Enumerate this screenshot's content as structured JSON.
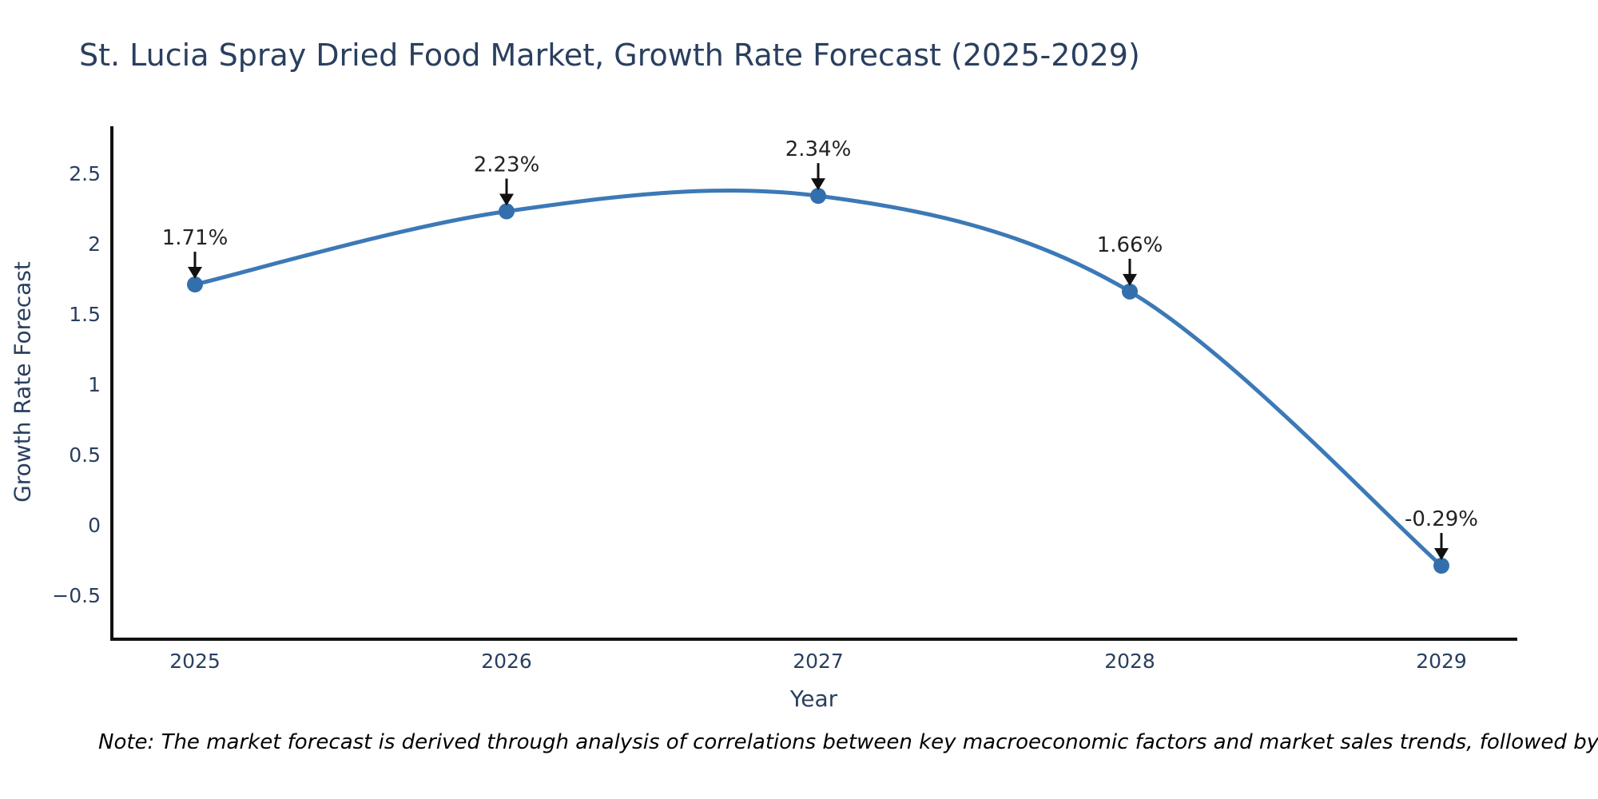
{
  "title": "St. Lucia Spray Dried Food Market, Growth Rate Forecast (2025-2029)",
  "note": "Note: The market forecast is derived through analysis of correlations between key macroeconomic factors and market sales trends, followed by predictive modeling to project future sa",
  "chart_data": {
    "type": "line",
    "line_shape": "spline",
    "title": "St. Lucia Spray Dried Food Market, Growth Rate Forecast (2025-2029)",
    "xlabel": "Year",
    "ylabel": "Growth Rate Forecast",
    "x": [
      2025,
      2026,
      2027,
      2028,
      2029
    ],
    "values": [
      1.71,
      2.23,
      2.34,
      1.66,
      -0.29
    ],
    "point_labels": [
      "1.71%",
      "2.23%",
      "2.34%",
      "1.66%",
      "-0.29%"
    ],
    "xtick_labels": [
      "2025",
      "2026",
      "2027",
      "2028",
      "2029"
    ],
    "yticks": [
      2.5,
      2,
      1.5,
      1,
      0.5,
      0,
      -0.5
    ],
    "ytick_labels": [
      "2.5",
      "2",
      "1.5",
      "1",
      "0.5",
      "0",
      "−0.5"
    ],
    "xrange": [
      2024.73,
      2029.25
    ],
    "yrange": [
      -0.82,
      2.84
    ],
    "grid": false,
    "legend": false,
    "annotations_arrow": "down",
    "colors": {
      "line": "#3c79b6",
      "marker": "#336fad",
      "axis_line": "#111111",
      "axis_text": "#2a3f5f",
      "annotation_text": "#222222",
      "title_text": "#2a3f5f",
      "note_text": "#000000",
      "background": "#ffffff"
    }
  }
}
